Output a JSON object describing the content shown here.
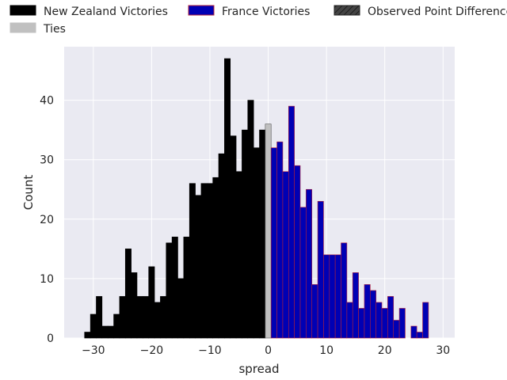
{
  "chart_data": {
    "type": "bar",
    "subtype": "histogram",
    "xlabel": "spread",
    "ylabel": "Count",
    "xlim": [
      -35,
      32
    ],
    "ylim": [
      0,
      49
    ],
    "xticks": [
      -30,
      -20,
      -10,
      0,
      10,
      20,
      30
    ],
    "yticks": [
      0,
      10,
      20,
      30,
      40
    ],
    "grid": true,
    "legend_placement": "top (above plot), 3 columns",
    "bin_width": 1,
    "series": [
      {
        "name": "New Zealand Victories",
        "color": "#000000",
        "edge_color": "#000000",
        "bins": [
          {
            "x": -31,
            "value": 1
          },
          {
            "x": -30,
            "value": 4
          },
          {
            "x": -29,
            "value": 7
          },
          {
            "x": -28,
            "value": 2
          },
          {
            "x": -27,
            "value": 2
          },
          {
            "x": -26,
            "value": 4
          },
          {
            "x": -25,
            "value": 7
          },
          {
            "x": -24,
            "value": 15
          },
          {
            "x": -23,
            "value": 11
          },
          {
            "x": -22,
            "value": 7
          },
          {
            "x": -21,
            "value": 7
          },
          {
            "x": -20,
            "value": 12
          },
          {
            "x": -19,
            "value": 6
          },
          {
            "x": -18,
            "value": 7
          },
          {
            "x": -17,
            "value": 16
          },
          {
            "x": -16,
            "value": 17
          },
          {
            "x": -15,
            "value": 10
          },
          {
            "x": -14,
            "value": 17
          },
          {
            "x": -13,
            "value": 26
          },
          {
            "x": -12,
            "value": 24
          },
          {
            "x": -11,
            "value": 26
          },
          {
            "x": -10,
            "value": 26
          },
          {
            "x": -9,
            "value": 27
          },
          {
            "x": -8,
            "value": 31
          },
          {
            "x": -7,
            "value": 47
          },
          {
            "x": -6,
            "value": 34
          },
          {
            "x": -5,
            "value": 28
          },
          {
            "x": -4,
            "value": 35
          },
          {
            "x": -3,
            "value": 40
          },
          {
            "x": -2,
            "value": 32
          },
          {
            "x": -1,
            "value": 35
          }
        ]
      },
      {
        "name": "Ties",
        "color": "#c0c0c0",
        "edge_color": "#555555",
        "bins": [
          {
            "x": 0,
            "value": 36
          }
        ]
      },
      {
        "name": "France Victories",
        "color": "#0000b4",
        "edge_color": "#b0203a",
        "bins": [
          {
            "x": 1,
            "value": 32
          },
          {
            "x": 2,
            "value": 33
          },
          {
            "x": 3,
            "value": 28
          },
          {
            "x": 4,
            "value": 39
          },
          {
            "x": 5,
            "value": 29
          },
          {
            "x": 6,
            "value": 22
          },
          {
            "x": 7,
            "value": 25
          },
          {
            "x": 8,
            "value": 9
          },
          {
            "x": 9,
            "value": 23
          },
          {
            "x": 10,
            "value": 14
          },
          {
            "x": 11,
            "value": 14
          },
          {
            "x": 12,
            "value": 14
          },
          {
            "x": 13,
            "value": 16
          },
          {
            "x": 14,
            "value": 6
          },
          {
            "x": 15,
            "value": 11
          },
          {
            "x": 16,
            "value": 5
          },
          {
            "x": 17,
            "value": 9
          },
          {
            "x": 18,
            "value": 8
          },
          {
            "x": 19,
            "value": 6
          },
          {
            "x": 20,
            "value": 5
          },
          {
            "x": 21,
            "value": 7
          },
          {
            "x": 22,
            "value": 3
          },
          {
            "x": 23,
            "value": 5
          },
          {
            "x": 24,
            "value": 0
          },
          {
            "x": 25,
            "value": 2
          },
          {
            "x": 26,
            "value": 1
          },
          {
            "x": 27,
            "value": 6
          }
        ]
      }
    ],
    "legend": [
      {
        "label": "New Zealand Victories",
        "color": "#000000",
        "edge": "#000000",
        "hatch": false
      },
      {
        "label": "France Victories",
        "color": "#0000b4",
        "edge": "#b0203a",
        "hatch": false
      },
      {
        "label": "Observed Point Difference",
        "color": "#444444",
        "edge": "#222222",
        "hatch": true
      },
      {
        "label": "Ties",
        "color": "#c0c0c0",
        "edge": "#c0c0c0",
        "hatch": false
      }
    ]
  },
  "colors": {
    "plot_background": "#eaeaf2",
    "grid": "#ffffff",
    "text": "#262626"
  }
}
